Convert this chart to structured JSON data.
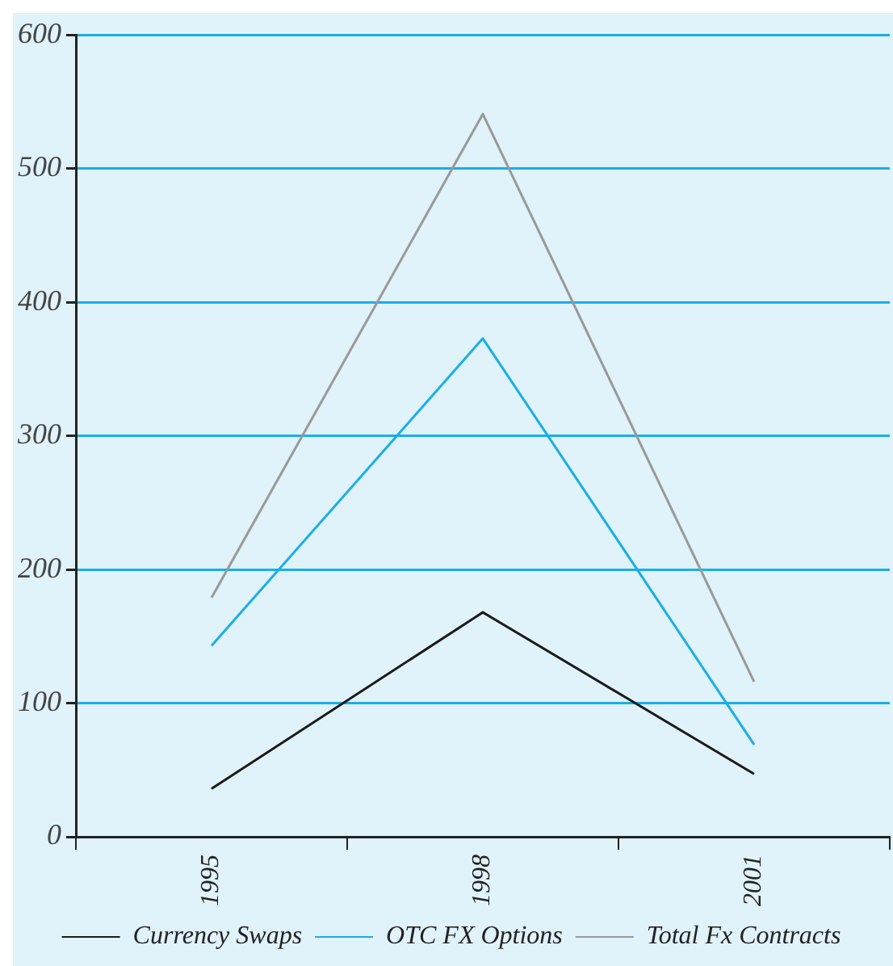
{
  "chart_data": {
    "type": "line",
    "categories": [
      "1995",
      "1998",
      "2001"
    ],
    "series": [
      {
        "name": "Currency Swaps",
        "color": "#1a1a1a",
        "values": [
          36,
          168,
          47
        ]
      },
      {
        "name": "OTC FX Options",
        "color": "#1aaee8",
        "values": [
          143,
          373,
          69
        ]
      },
      {
        "name": "Total Fx Contracts",
        "color": "#999999",
        "values": [
          179,
          541,
          116
        ]
      }
    ],
    "ylim": [
      0,
      600
    ],
    "yticks": [
      0,
      100,
      200,
      300,
      400,
      500,
      600
    ],
    "grid": "y",
    "legend": "bottom",
    "marker": "none",
    "line_style": "solid"
  }
}
